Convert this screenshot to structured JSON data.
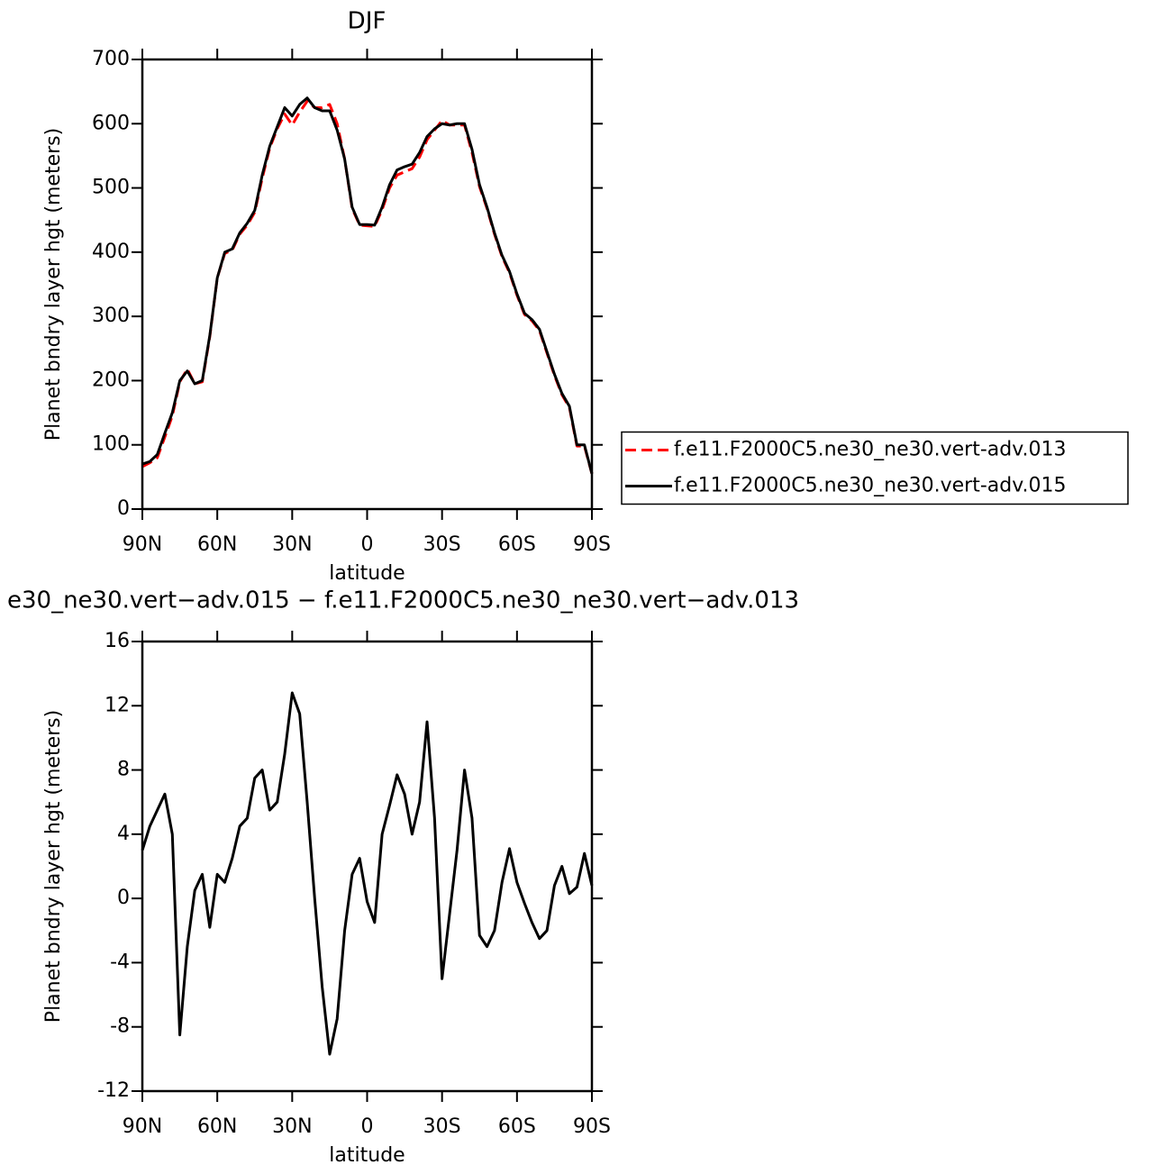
{
  "chart_data": [
    {
      "type": "line",
      "title": "DJF",
      "xlabel": "latitude",
      "ylabel": "Planet bndry layer hgt (meters)",
      "x": [
        90,
        87,
        84,
        81,
        78,
        75,
        72,
        69,
        66,
        63,
        60,
        57,
        54,
        51,
        48,
        45,
        42,
        39,
        36,
        33,
        30,
        27,
        24,
        21,
        18,
        15,
        12,
        9,
        6,
        3,
        0,
        -3,
        -6,
        -9,
        -12,
        -15,
        -18,
        -21,
        -24,
        -27,
        -30,
        -33,
        -36,
        -39,
        -42,
        -45,
        -48,
        -51,
        -54,
        -57,
        -60,
        -63,
        -66,
        -69,
        -72,
        -75,
        -78,
        -81,
        -84,
        -87,
        -90
      ],
      "xlim": [
        90,
        -90
      ],
      "xticks": [
        {
          "value": 90,
          "label": "90N"
        },
        {
          "value": 60,
          "label": "60N"
        },
        {
          "value": 30,
          "label": "30N"
        },
        0,
        {
          "value": -30,
          "label": "30S"
        },
        {
          "value": -60,
          "label": "60S"
        },
        {
          "value": -90,
          "label": "90S"
        }
      ],
      "ylim": [
        0,
        700
      ],
      "yticks": [
        0,
        100,
        200,
        300,
        400,
        500,
        600,
        700
      ],
      "legend": "right",
      "series": [
        {
          "name": "f.e11.F2000C5.ne30_ne30.vert-adv.013",
          "color": "#ff0000",
          "dashed": true,
          "values": [
            66,
            72,
            80,
            112,
            145,
            198,
            218,
            195,
            198,
            268,
            360,
            398,
            403,
            428,
            442,
            462,
            515,
            562,
            592,
            615,
            598,
            618,
            635,
            625,
            625,
            630,
            600,
            545,
            468,
            442,
            441,
            440,
            466,
            500,
            520,
            525,
            530,
            548,
            575,
            590,
            605,
            598,
            598,
            598,
            555,
            502,
            468,
            428,
            393,
            368,
            333,
            303,
            293,
            278,
            243,
            208,
            178,
            158,
            98,
            98,
            55
          ]
        },
        {
          "name": "f.e11.F2000C5.ne30_ne30.vert-adv.015",
          "color": "#000000",
          "dashed": false,
          "values": [
            70,
            74,
            85,
            118,
            150,
            200,
            215,
            195,
            200,
            270,
            360,
            400,
            405,
            430,
            445,
            465,
            520,
            565,
            595,
            625,
            612,
            630,
            640,
            625,
            620,
            620,
            590,
            545,
            470,
            443,
            443,
            442,
            470,
            505,
            528,
            533,
            537,
            555,
            580,
            592,
            600,
            598,
            600,
            600,
            560,
            505,
            470,
            430,
            395,
            370,
            335,
            305,
            295,
            280,
            245,
            210,
            180,
            160,
            100,
            100,
            55
          ]
        }
      ]
    },
    {
      "type": "line",
      "title": "e30_ne30.vert−adv.015 − f.e11.F2000C5.ne30_ne30.vert−adv.013",
      "xlabel": "latitude",
      "ylabel": "Planet bndry layer hgt (meters)",
      "x": [
        90,
        87,
        84,
        81,
        78,
        75,
        72,
        69,
        66,
        63,
        60,
        57,
        54,
        51,
        48,
        45,
        42,
        39,
        36,
        33,
        30,
        27,
        24,
        21,
        18,
        15,
        12,
        9,
        6,
        3,
        0,
        -3,
        -6,
        -9,
        -12,
        -15,
        -18,
        -21,
        -24,
        -27,
        -30,
        -33,
        -36,
        -39,
        -42,
        -45,
        -48,
        -51,
        -54,
        -57,
        -60,
        -63,
        -66,
        -69,
        -72,
        -75,
        -78,
        -81,
        -84,
        -87,
        -90
      ],
      "xlim": [
        90,
        -90
      ],
      "xticks": [
        {
          "value": 90,
          "label": "90N"
        },
        {
          "value": 60,
          "label": "60N"
        },
        {
          "value": 30,
          "label": "30N"
        },
        0,
        {
          "value": -30,
          "label": "30S"
        },
        {
          "value": -60,
          "label": "60S"
        },
        {
          "value": -90,
          "label": "90S"
        }
      ],
      "ylim": [
        -12,
        16
      ],
      "yticks": [
        -12,
        -8,
        -4,
        0,
        4,
        8,
        12,
        16
      ],
      "series": [
        {
          "color": "#000000",
          "dashed": false,
          "values": [
            3,
            4.5,
            5.5,
            6.5,
            4,
            -8.5,
            -3,
            0.5,
            1.5,
            -1.8,
            1.5,
            1,
            2.5,
            4.5,
            5,
            7.5,
            8,
            5.5,
            6,
            9,
            12.8,
            11.5,
            6,
            0,
            -5.5,
            -9.7,
            -7.5,
            -2,
            1.5,
            2.5,
            -0.2,
            -1.5,
            4,
            5.8,
            7.7,
            6.5,
            4,
            6,
            11,
            5,
            -5,
            -1,
            3,
            8,
            5,
            -2.3,
            -3,
            -2,
            1,
            3.1,
            1,
            -0.3,
            -1.5,
            -2.5,
            -2,
            0.8,
            2,
            0.3,
            0.7,
            2.8,
            0.8
          ]
        }
      ]
    }
  ]
}
